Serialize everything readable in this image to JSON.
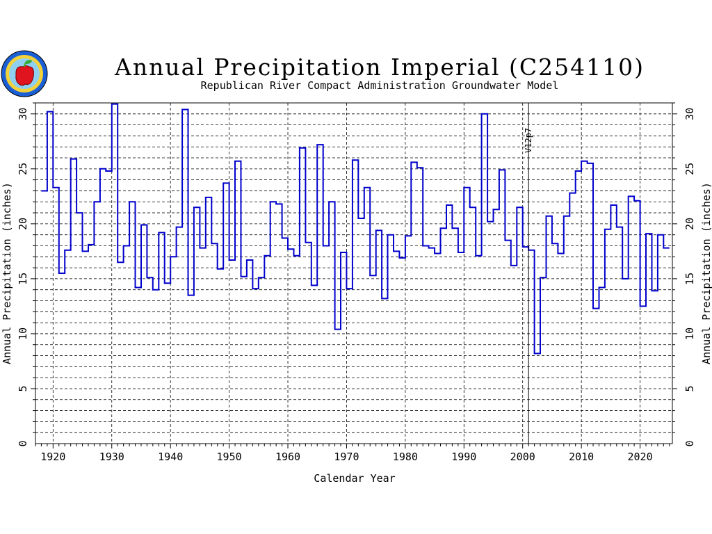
{
  "logo": {
    "text": "REPUBLICAN RIVER COMPACT ADMINISTRATION"
  },
  "chart_data": {
    "type": "line",
    "step": true,
    "title": "Annual Precipitation Imperial (C254110)",
    "subtitle": "Republican River Compact Administration Groundwater Model",
    "xlabel": "Calendar Year",
    "ylabel": "Annual Precipitation (inches)",
    "ylabel_right": "Annual Precipitation (inches)",
    "xlim": [
      1917,
      2025.5
    ],
    "ylim": [
      0,
      31
    ],
    "xticks": [
      1920,
      1930,
      1940,
      1950,
      1960,
      1970,
      1980,
      1990,
      2000,
      2010,
      2020
    ],
    "yticks": [
      0,
      5,
      10,
      15,
      20,
      25,
      30
    ],
    "grid": true,
    "series_color": "#0000cc",
    "annotation": {
      "text": "V12p7",
      "x": 2001
    },
    "x": [
      1918,
      1919,
      1920,
      1921,
      1922,
      1923,
      1924,
      1925,
      1926,
      1927,
      1928,
      1929,
      1930,
      1931,
      1932,
      1933,
      1934,
      1935,
      1936,
      1937,
      1938,
      1939,
      1940,
      1941,
      1942,
      1943,
      1944,
      1945,
      1946,
      1947,
      1948,
      1949,
      1950,
      1951,
      1952,
      1953,
      1954,
      1955,
      1956,
      1957,
      1958,
      1959,
      1960,
      1961,
      1962,
      1963,
      1964,
      1965,
      1966,
      1967,
      1968,
      1969,
      1970,
      1971,
      1972,
      1973,
      1974,
      1975,
      1976,
      1977,
      1978,
      1979,
      1980,
      1981,
      1982,
      1983,
      1984,
      1985,
      1986,
      1987,
      1988,
      1989,
      1990,
      1991,
      1992,
      1993,
      1994,
      1995,
      1996,
      1997,
      1998,
      1999,
      2000,
      2001,
      2002,
      2003,
      2004,
      2005,
      2006,
      2007,
      2008,
      2009,
      2010,
      2011,
      2012,
      2013,
      2014,
      2015,
      2016,
      2017,
      2018,
      2019,
      2020,
      2021,
      2022,
      2023,
      2024
    ],
    "y": [
      23.0,
      30.2,
      23.3,
      15.5,
      17.6,
      25.9,
      21.0,
      17.5,
      18.1,
      22.0,
      25.0,
      24.8,
      30.9,
      16.5,
      18.0,
      22.0,
      14.2,
      19.9,
      15.1,
      14.0,
      19.2,
      14.6,
      17.0,
      19.7,
      30.4,
      13.5,
      21.5,
      17.8,
      22.4,
      18.2,
      15.9,
      23.7,
      16.7,
      25.7,
      15.2,
      16.7,
      14.1,
      15.1,
      17.1,
      22.0,
      21.8,
      18.7,
      17.7,
      17.1,
      26.9,
      18.3,
      14.4,
      27.2,
      18.0,
      22.0,
      10.4,
      17.4,
      14.1,
      25.8,
      20.5,
      23.3,
      15.3,
      19.4,
      13.2,
      19.0,
      17.5,
      16.9,
      18.9,
      25.6,
      25.1,
      18.0,
      17.8,
      17.3,
      19.6,
      21.7,
      19.6,
      17.4,
      23.3,
      21.5,
      17.1,
      30.0,
      20.2,
      21.3,
      24.9,
      18.5,
      16.2,
      21.5,
      17.9,
      17.6,
      8.2,
      15.1,
      20.7,
      18.2,
      17.3,
      20.7,
      22.8,
      24.8,
      25.7,
      25.5,
      12.3,
      14.2,
      19.5,
      21.7,
      19.7,
      15.0,
      22.5,
      22.1,
      12.5,
      19.1,
      13.9,
      19.0,
      17.8
    ]
  }
}
